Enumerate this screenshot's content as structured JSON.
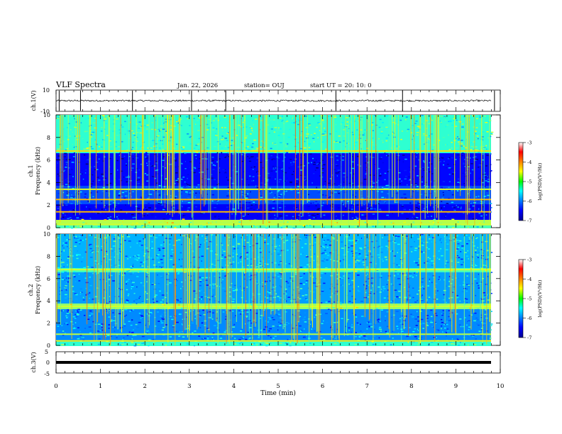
{
  "header": {
    "title": "VLF Spectra",
    "date": "Jan. 22, 2026",
    "station": "station= OUJ",
    "start": "start UT =   20: 10: 0"
  },
  "chart_data": [
    {
      "type": "line",
      "name": "ch1-waveform",
      "ylabel": "ch.1(V)",
      "ylim": [
        -10,
        10
      ],
      "yticks": [
        "10",
        "-10"
      ],
      "xlim": [
        0,
        10
      ],
      "baseline": 0,
      "spikes_min": [
        0.07,
        0.55,
        1.72,
        3.05,
        3.82,
        6.3,
        7.8,
        9.87
      ]
    },
    {
      "type": "heatmap",
      "name": "ch1-spectrogram",
      "ylabel": "ch.1\nFrequency (kHz)",
      "ylim": [
        0,
        10
      ],
      "yticks": [
        "0",
        "2",
        "4",
        "6",
        "8",
        "10"
      ],
      "xlim": [
        0,
        9.8
      ],
      "colorbar": {
        "label": "log(PSD)(V²/Hz)",
        "range": [
          -7,
          -3
        ],
        "ticks": [
          "-3",
          "-4",
          "-5",
          "-6",
          "-7"
        ]
      },
      "bright_bands_khz": [
        0.3,
        0.6,
        1.4,
        2.5,
        3.4,
        6.8
      ]
    },
    {
      "type": "heatmap",
      "name": "ch2-spectrogram",
      "ylabel": "ch.2\nFrequency (kHz)",
      "ylim": [
        0,
        10
      ],
      "yticks": [
        "0",
        "2",
        "4",
        "6",
        "8",
        "10"
      ],
      "xlim": [
        0,
        9.8
      ],
      "colorbar": {
        "label": "log(PSD)(V²/Hz)",
        "range": [
          -7,
          -3
        ],
        "ticks": [
          "-3",
          "-4",
          "-5",
          "-6",
          "-7"
        ]
      },
      "bright_bands_khz": [
        0.4,
        1.0,
        3.5,
        6.8
      ]
    },
    {
      "type": "line",
      "name": "ch3-waveform",
      "ylabel": "ch.3(V)",
      "ylim": [
        -5,
        5
      ],
      "yticks": [
        "5",
        "0",
        "-5"
      ],
      "xlim": [
        0,
        10
      ],
      "baseline": 0
    }
  ],
  "xaxis": {
    "label": "Time (min)",
    "ticks": [
      "0",
      "1",
      "2",
      "3",
      "4",
      "5",
      "6",
      "7",
      "8",
      "9",
      "10"
    ]
  }
}
